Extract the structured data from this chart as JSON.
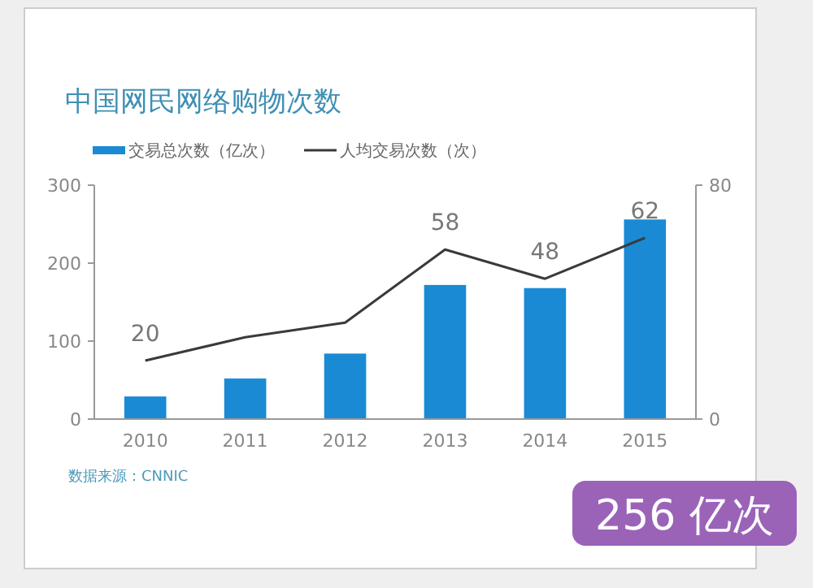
{
  "chart_data": {
    "type": "bar",
    "title": "中国网民网络购物次数",
    "categories": [
      "2010",
      "2011",
      "2012",
      "2013",
      "2014",
      "2015"
    ],
    "series": [
      {
        "name": "交易总次数（亿次）",
        "color": "#1a8ad4",
        "values": [
          29,
          52,
          84,
          172,
          168,
          256
        ]
      },
      {
        "name": "人均交易次数（次）",
        "type": "line",
        "axis": "y2",
        "color": "#3a3a3a",
        "values": [
          20,
          28,
          33,
          58,
          48,
          62
        ],
        "value_labels": [
          "20",
          null,
          null,
          "58",
          "48",
          "62"
        ]
      }
    ],
    "ylim": [
      0,
      300
    ],
    "yticks": [
      0,
      100,
      200,
      300
    ],
    "y2lim": [
      0,
      80
    ],
    "y2ticks": [
      0,
      80
    ],
    "grid": false,
    "legend": "top left",
    "marker": "none",
    "annotations": [
      "数据来源：CNNIC",
      "256 亿次"
    ]
  }
}
